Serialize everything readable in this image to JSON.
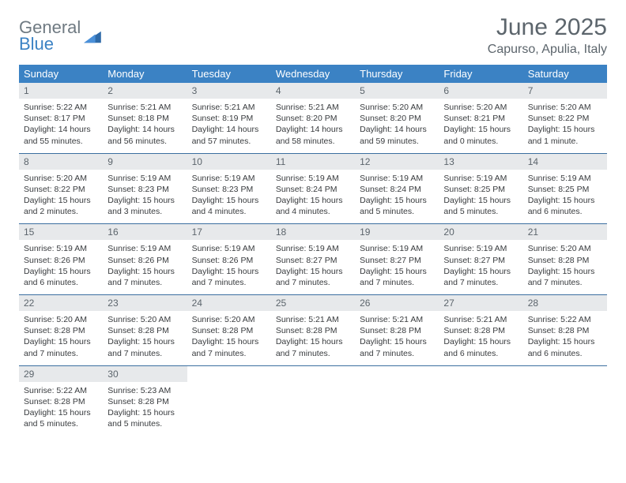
{
  "logo": {
    "line1": "General",
    "line2": "Blue"
  },
  "title": "June 2025",
  "location": "Capurso, Apulia, Italy",
  "colors": {
    "header_bg": "#3b82c4",
    "header_text": "#ffffff",
    "daynum_bg": "#e7e9eb",
    "text_muted": "#5c656c",
    "text_body": "#383b3e",
    "rule": "#3b6fa0"
  },
  "days_of_week": [
    "Sunday",
    "Monday",
    "Tuesday",
    "Wednesday",
    "Thursday",
    "Friday",
    "Saturday"
  ],
  "weeks": [
    [
      {
        "n": "1",
        "sunrise": "Sunrise: 5:22 AM",
        "sunset": "Sunset: 8:17 PM",
        "day1": "Daylight: 14 hours",
        "day2": "and 55 minutes."
      },
      {
        "n": "2",
        "sunrise": "Sunrise: 5:21 AM",
        "sunset": "Sunset: 8:18 PM",
        "day1": "Daylight: 14 hours",
        "day2": "and 56 minutes."
      },
      {
        "n": "3",
        "sunrise": "Sunrise: 5:21 AM",
        "sunset": "Sunset: 8:19 PM",
        "day1": "Daylight: 14 hours",
        "day2": "and 57 minutes."
      },
      {
        "n": "4",
        "sunrise": "Sunrise: 5:21 AM",
        "sunset": "Sunset: 8:20 PM",
        "day1": "Daylight: 14 hours",
        "day2": "and 58 minutes."
      },
      {
        "n": "5",
        "sunrise": "Sunrise: 5:20 AM",
        "sunset": "Sunset: 8:20 PM",
        "day1": "Daylight: 14 hours",
        "day2": "and 59 minutes."
      },
      {
        "n": "6",
        "sunrise": "Sunrise: 5:20 AM",
        "sunset": "Sunset: 8:21 PM",
        "day1": "Daylight: 15 hours",
        "day2": "and 0 minutes."
      },
      {
        "n": "7",
        "sunrise": "Sunrise: 5:20 AM",
        "sunset": "Sunset: 8:22 PM",
        "day1": "Daylight: 15 hours",
        "day2": "and 1 minute."
      }
    ],
    [
      {
        "n": "8",
        "sunrise": "Sunrise: 5:20 AM",
        "sunset": "Sunset: 8:22 PM",
        "day1": "Daylight: 15 hours",
        "day2": "and 2 minutes."
      },
      {
        "n": "9",
        "sunrise": "Sunrise: 5:19 AM",
        "sunset": "Sunset: 8:23 PM",
        "day1": "Daylight: 15 hours",
        "day2": "and 3 minutes."
      },
      {
        "n": "10",
        "sunrise": "Sunrise: 5:19 AM",
        "sunset": "Sunset: 8:23 PM",
        "day1": "Daylight: 15 hours",
        "day2": "and 4 minutes."
      },
      {
        "n": "11",
        "sunrise": "Sunrise: 5:19 AM",
        "sunset": "Sunset: 8:24 PM",
        "day1": "Daylight: 15 hours",
        "day2": "and 4 minutes."
      },
      {
        "n": "12",
        "sunrise": "Sunrise: 5:19 AM",
        "sunset": "Sunset: 8:24 PM",
        "day1": "Daylight: 15 hours",
        "day2": "and 5 minutes."
      },
      {
        "n": "13",
        "sunrise": "Sunrise: 5:19 AM",
        "sunset": "Sunset: 8:25 PM",
        "day1": "Daylight: 15 hours",
        "day2": "and 5 minutes."
      },
      {
        "n": "14",
        "sunrise": "Sunrise: 5:19 AM",
        "sunset": "Sunset: 8:25 PM",
        "day1": "Daylight: 15 hours",
        "day2": "and 6 minutes."
      }
    ],
    [
      {
        "n": "15",
        "sunrise": "Sunrise: 5:19 AM",
        "sunset": "Sunset: 8:26 PM",
        "day1": "Daylight: 15 hours",
        "day2": "and 6 minutes."
      },
      {
        "n": "16",
        "sunrise": "Sunrise: 5:19 AM",
        "sunset": "Sunset: 8:26 PM",
        "day1": "Daylight: 15 hours",
        "day2": "and 7 minutes."
      },
      {
        "n": "17",
        "sunrise": "Sunrise: 5:19 AM",
        "sunset": "Sunset: 8:26 PM",
        "day1": "Daylight: 15 hours",
        "day2": "and 7 minutes."
      },
      {
        "n": "18",
        "sunrise": "Sunrise: 5:19 AM",
        "sunset": "Sunset: 8:27 PM",
        "day1": "Daylight: 15 hours",
        "day2": "and 7 minutes."
      },
      {
        "n": "19",
        "sunrise": "Sunrise: 5:19 AM",
        "sunset": "Sunset: 8:27 PM",
        "day1": "Daylight: 15 hours",
        "day2": "and 7 minutes."
      },
      {
        "n": "20",
        "sunrise": "Sunrise: 5:19 AM",
        "sunset": "Sunset: 8:27 PM",
        "day1": "Daylight: 15 hours",
        "day2": "and 7 minutes."
      },
      {
        "n": "21",
        "sunrise": "Sunrise: 5:20 AM",
        "sunset": "Sunset: 8:28 PM",
        "day1": "Daylight: 15 hours",
        "day2": "and 7 minutes."
      }
    ],
    [
      {
        "n": "22",
        "sunrise": "Sunrise: 5:20 AM",
        "sunset": "Sunset: 8:28 PM",
        "day1": "Daylight: 15 hours",
        "day2": "and 7 minutes."
      },
      {
        "n": "23",
        "sunrise": "Sunrise: 5:20 AM",
        "sunset": "Sunset: 8:28 PM",
        "day1": "Daylight: 15 hours",
        "day2": "and 7 minutes."
      },
      {
        "n": "24",
        "sunrise": "Sunrise: 5:20 AM",
        "sunset": "Sunset: 8:28 PM",
        "day1": "Daylight: 15 hours",
        "day2": "and 7 minutes."
      },
      {
        "n": "25",
        "sunrise": "Sunrise: 5:21 AM",
        "sunset": "Sunset: 8:28 PM",
        "day1": "Daylight: 15 hours",
        "day2": "and 7 minutes."
      },
      {
        "n": "26",
        "sunrise": "Sunrise: 5:21 AM",
        "sunset": "Sunset: 8:28 PM",
        "day1": "Daylight: 15 hours",
        "day2": "and 7 minutes."
      },
      {
        "n": "27",
        "sunrise": "Sunrise: 5:21 AM",
        "sunset": "Sunset: 8:28 PM",
        "day1": "Daylight: 15 hours",
        "day2": "and 6 minutes."
      },
      {
        "n": "28",
        "sunrise": "Sunrise: 5:22 AM",
        "sunset": "Sunset: 8:28 PM",
        "day1": "Daylight: 15 hours",
        "day2": "and 6 minutes."
      }
    ],
    [
      {
        "n": "29",
        "sunrise": "Sunrise: 5:22 AM",
        "sunset": "Sunset: 8:28 PM",
        "day1": "Daylight: 15 hours",
        "day2": "and 5 minutes."
      },
      {
        "n": "30",
        "sunrise": "Sunrise: 5:23 AM",
        "sunset": "Sunset: 8:28 PM",
        "day1": "Daylight: 15 hours",
        "day2": "and 5 minutes."
      },
      {
        "empty": true
      },
      {
        "empty": true
      },
      {
        "empty": true
      },
      {
        "empty": true
      },
      {
        "empty": true
      }
    ]
  ]
}
